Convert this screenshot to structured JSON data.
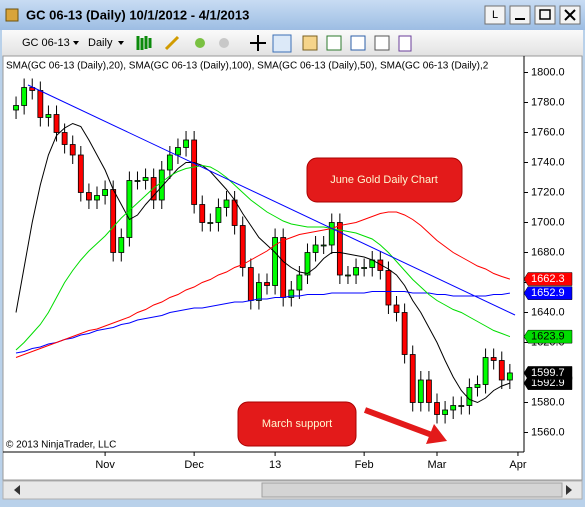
{
  "window": {
    "title": "GC 06-13 (Daily)  10/1/2012 - 4/1/2013",
    "button": "L"
  },
  "toolbar": {
    "instrument": "GC 06-13",
    "interval": "Daily"
  },
  "chart_data": {
    "type": "candlestick",
    "indicator_label": "SMA(GC 06-13 (Daily),20), SMA(GC 06-13 (Daily),100), SMA(GC 06-13 (Daily),50), SMA(GC 06-13 (Daily),2",
    "copyright": "© 2013 NinjaTrader, LLC",
    "annotations": [
      "June Gold Daily Chart",
      "March support"
    ],
    "categories": [
      null,
      null,
      null,
      null,
      null,
      null,
      null,
      null,
      null,
      null,
      null,
      "Nov",
      null,
      null,
      null,
      null,
      null,
      null,
      null,
      null,
      null,
      null,
      "Dec",
      null,
      null,
      null,
      null,
      null,
      null,
      null,
      null,
      null,
      "13",
      null,
      null,
      null,
      null,
      null,
      null,
      null,
      null,
      null,
      null,
      "Feb",
      null,
      null,
      null,
      null,
      null,
      null,
      null,
      null,
      "Mar",
      null,
      null,
      null,
      null,
      null,
      null,
      null,
      null,
      null,
      "Apr"
    ],
    "open": [
      1775,
      1778,
      1790,
      1788,
      1770,
      1772,
      1760,
      1752,
      1745,
      1720,
      1715,
      1718,
      1722,
      1680,
      1690,
      1728,
      1728,
      1730,
      1715,
      1735,
      1745,
      1750,
      1755,
      1712,
      1700,
      1700,
      1710,
      1715,
      1698,
      1670,
      1648,
      1660,
      1658,
      1690,
      1650,
      1655,
      1665,
      1680,
      1685,
      1685,
      1700,
      1665,
      1665,
      1670,
      1670,
      1675,
      1668,
      1645,
      1640,
      1612,
      1580,
      1595,
      1580,
      1572,
      1575,
      1578,
      1578,
      1590,
      1592,
      1610,
      1608,
      1595,
      null
    ],
    "high": [
      1784,
      1796,
      1796,
      1794,
      1778,
      1778,
      1766,
      1758,
      1751,
      1726,
      1724,
      1728,
      1728,
      1696,
      1734,
      1734,
      1736,
      1736,
      1741,
      1751,
      1756,
      1761,
      1761,
      1718,
      1706,
      1716,
      1721,
      1721,
      1704,
      1676,
      1666,
      1666,
      1696,
      1696,
      1661,
      1671,
      1686,
      1691,
      1691,
      1706,
      1706,
      1671,
      1676,
      1676,
      1681,
      1681,
      1674,
      1651,
      1646,
      1618,
      1601,
      1601,
      1586,
      1581,
      1584,
      1584,
      1596,
      1598,
      1616,
      1616,
      1614,
      1605.7,
      null
    ],
    "low": [
      1769,
      1772,
      1782,
      1764,
      1764,
      1754,
      1746,
      1739,
      1714,
      1709,
      1709,
      1712,
      1674,
      1674,
      1684,
      1722,
      1722,
      1709,
      1709,
      1729,
      1739,
      1744,
      1706,
      1694,
      1694,
      1694,
      1704,
      1692,
      1664,
      1642,
      1642,
      1652,
      1652,
      1644,
      1644,
      1649,
      1659,
      1674,
      1679,
      1679,
      1659,
      1659,
      1659,
      1664,
      1664,
      1662,
      1639,
      1634,
      1606,
      1574,
      1574,
      1574,
      1566,
      1566,
      1569,
      1572,
      1572,
      1584,
      1586,
      1602,
      1589,
      1589,
      null
    ],
    "close": [
      1778,
      1790,
      1788,
      1770,
      1772,
      1760,
      1752,
      1745,
      1720,
      1715,
      1718,
      1722,
      1680,
      1690,
      1728,
      1728,
      1730,
      1715,
      1735,
      1745,
      1750,
      1755,
      1712,
      1700,
      1700,
      1710,
      1715,
      1698,
      1670,
      1648,
      1660,
      1658,
      1690,
      1650,
      1655,
      1665,
      1680,
      1685,
      1685,
      1700,
      1665,
      1665,
      1670,
      1670,
      1675,
      1668,
      1645,
      1640,
      1612,
      1580,
      1595,
      1580,
      1572,
      1575,
      1578,
      1578,
      1590,
      1592,
      1610,
      1608,
      1595,
      1599.7,
      null
    ],
    "up_color": "#00ff00",
    "down_color": "#ff0000",
    "series": [
      {
        "color": "#000000",
        "values": [
          1640,
          1670,
          1700,
          1725,
          1745,
          1758,
          1763,
          1766,
          1764,
          1755,
          1745,
          1735,
          1722,
          1712,
          1702,
          1705,
          1712,
          1718,
          1724,
          1730,
          1736,
          1740,
          1740,
          1738,
          1734,
          1728,
          1722,
          1715,
          1706,
          1698,
          1690,
          1685,
          1680,
          1674,
          1670,
          1667,
          1666,
          1670,
          1676,
          1680,
          1680,
          1679,
          1678,
          1677,
          1675,
          1672,
          1669,
          1665,
          1658,
          1648,
          1640,
          1630,
          1620,
          1608,
          1597,
          1588,
          1582,
          1580,
          1583,
          1588,
          1591,
          1592.9,
          null
        ]
      },
      {
        "color": "#0000ff",
        "values": [
          1613,
          1614,
          1616,
          1617,
          1619,
          1620,
          1622,
          1623,
          1625,
          1626,
          1628,
          1629,
          1630,
          1632,
          1633,
          1635,
          1636,
          1637,
          1638,
          1640,
          1641,
          1642,
          1643,
          1643,
          1644,
          1645,
          1646,
          1647,
          1647,
          1648,
          1649,
          1649,
          1650,
          1650,
          1651,
          1651,
          1652,
          1652,
          1652,
          1653,
          1653,
          1653,
          1653,
          1653,
          1654,
          1654,
          1654,
          1654,
          1654,
          1653,
          1653,
          1653,
          1652,
          1652,
          1651,
          1651,
          1651,
          1651,
          1651,
          1652,
          1652,
          1652.9,
          null
        ]
      },
      {
        "color": "#00dd00",
        "values": [
          1615,
          1620,
          1626,
          1632,
          1640,
          1650,
          1660,
          1668,
          1675,
          1681,
          1686,
          1691,
          1697,
          1703,
          1708,
          1713,
          1718,
          1723,
          1727,
          1731,
          1734,
          1736,
          1737,
          1738,
          1737,
          1734,
          1730,
          1725,
          1720,
          1715,
          1711,
          1707,
          1704,
          1701,
          1699,
          1698,
          1697,
          1697,
          1697,
          1696,
          1695,
          1694,
          1693,
          1691,
          1689,
          1685,
          1680,
          1674,
          1668,
          1662,
          1657,
          1652,
          1648,
          1645,
          1642,
          1640,
          1637,
          1634,
          1631,
          1628,
          1626,
          1623.9,
          null
        ]
      },
      {
        "color": "#ff0000",
        "values": [
          1610,
          1612,
          1614,
          1616,
          1618,
          1620,
          1622,
          1624,
          1626,
          1628,
          1629,
          1631,
          1633,
          1635,
          1637,
          1640,
          1642,
          1645,
          1647,
          1650,
          1652,
          1655,
          1657,
          1660,
          1662,
          1665,
          1667,
          1670,
          1672,
          1675,
          1678,
          1681,
          1685,
          1688,
          1690,
          1692,
          1693,
          1694,
          1695,
          1696,
          1698,
          1699,
          1700,
          1702,
          1704,
          1706,
          1707,
          1707,
          1705,
          1702,
          1698,
          1693,
          1688,
          1684,
          1680,
          1677,
          1674,
          1671,
          1669,
          1666,
          1664,
          1662.3,
          null
        ]
      }
    ],
    "ylim": [
      1547,
      1811
    ],
    "yticks": [
      {
        "value": 1560,
        "label": "1560.0"
      },
      {
        "value": 1580,
        "label": "1580.0"
      },
      {
        "value": 1600,
        "label": "1600.0"
      },
      {
        "value": 1620,
        "label": "1620.0"
      },
      {
        "value": 1640,
        "label": "1640.0"
      },
      {
        "value": 1660,
        "label": "1660.0"
      },
      {
        "value": 1680,
        "label": "1680.0"
      },
      {
        "value": 1700,
        "label": "1700.0"
      },
      {
        "value": 1720,
        "label": "1720.0"
      },
      {
        "value": 1740,
        "label": "1740.0"
      },
      {
        "value": 1760,
        "label": "1760.0"
      },
      {
        "value": 1780,
        "label": "1780.0"
      },
      {
        "value": 1800,
        "label": "1800.0"
      }
    ],
    "grid": false
  }
}
